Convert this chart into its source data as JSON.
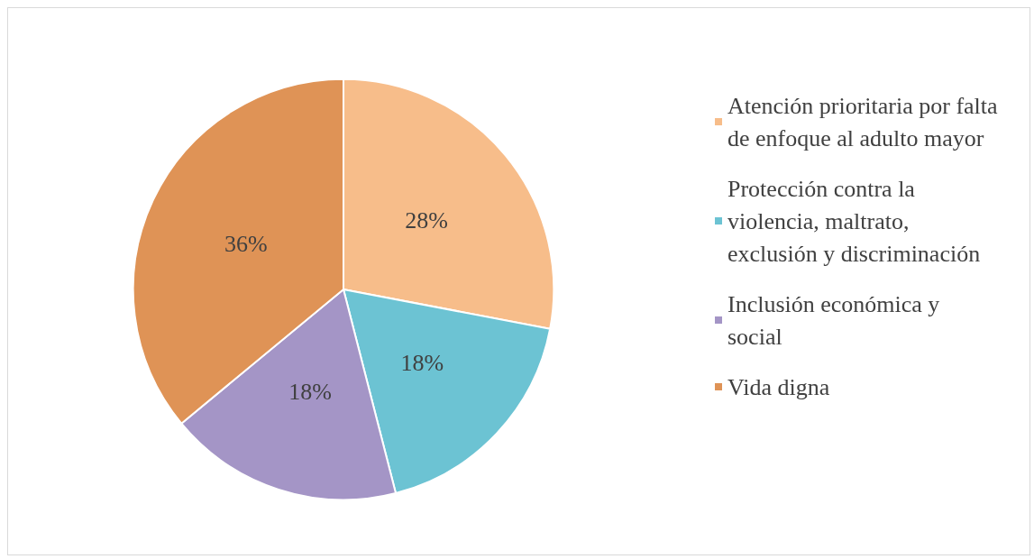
{
  "chart_data": {
    "type": "pie",
    "categories": [
      "Atención prioritaria por falta de enfoque al adulto mayor",
      "Protección contra la violencia, maltrato, exclusión y discriminación",
      "Inclusión económica y social",
      "Vida digna"
    ],
    "values": [
      28,
      18,
      18,
      36
    ],
    "colors": [
      "#f7bd8a",
      "#6cc3d3",
      "#a495c6",
      "#df9356"
    ],
    "value_labels": [
      "28%",
      "18%",
      "18%",
      "36%"
    ],
    "legend": "right"
  }
}
